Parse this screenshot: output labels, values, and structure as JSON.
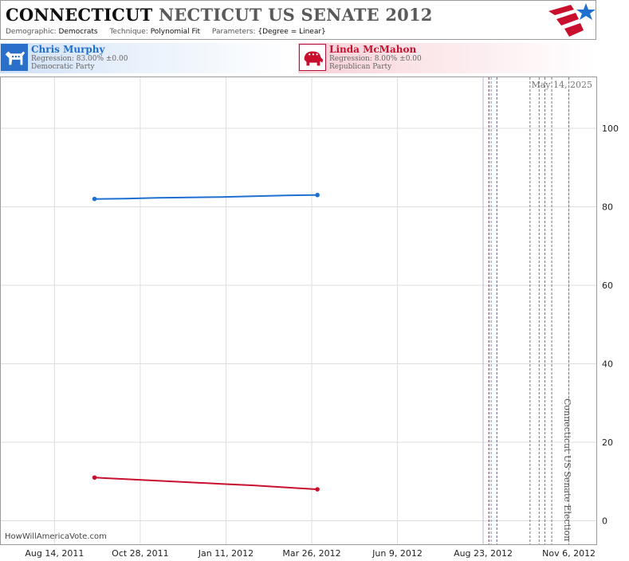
{
  "header": {
    "title_main": "CONNECTICUT",
    "title_rest": "NECTICUT US SENATE 2012",
    "demographic_label": "Demographic:",
    "demographic_value": "Democrats",
    "technique_label": "Technique:",
    "technique_value": "Polynomial Fit",
    "parameters_label": "Parameters:",
    "parameters_value": "{Degree = Linear}"
  },
  "candidates": [
    {
      "name": "Chris Murphy",
      "regression": "Regression: 83.00% ±0.00",
      "party": "Democratic Party",
      "color": "#1f6fd1"
    },
    {
      "name": "Linda McMahon",
      "regression": "Regression: 8.00% ±0.00",
      "party": "Republican Party",
      "color": "#c8102e"
    }
  ],
  "today_label": "May 14, 2025",
  "election_label": "Connecticut US Senate Election",
  "source_label": "HowWillAmericaVote.com",
  "colors": {
    "democrat": "#1f6fd1",
    "republican": "#c8102e",
    "grid": "#dddddd",
    "axis_text": "#222222"
  },
  "chart_data": {
    "type": "line",
    "x_ticks": [
      "Aug 14, 2011",
      "Oct 28, 2011",
      "Jan 11, 2012",
      "Mar 26, 2012",
      "Jun 9, 2012",
      "Aug 23, 2012",
      "Nov 6, 2012"
    ],
    "y_ticks": [
      0,
      20,
      40,
      60,
      80,
      100
    ],
    "ylim": [
      -6,
      113
    ],
    "xlim": [
      "2011-06-28",
      "2012-11-30"
    ],
    "grid": true,
    "series": [
      {
        "name": "Chris Murphy",
        "color": "#1f6fd1",
        "x": [
          "2011-09-18",
          "2011-10-15",
          "2011-11-12",
          "2011-12-10",
          "2012-01-07",
          "2012-02-04",
          "2012-03-03",
          "2012-03-31"
        ],
        "y": [
          82.0,
          82.1,
          82.3,
          82.4,
          82.5,
          82.7,
          82.9,
          83.0
        ]
      },
      {
        "name": "Linda McMahon",
        "color": "#c8102e",
        "x": [
          "2011-09-18",
          "2011-10-15",
          "2011-11-12",
          "2011-12-10",
          "2012-01-07",
          "2012-02-04",
          "2012-03-03",
          "2012-03-31"
        ],
        "y": [
          11.0,
          10.6,
          10.2,
          9.8,
          9.4,
          9.0,
          8.5,
          8.0
        ]
      }
    ],
    "event_lines": [
      {
        "date": "2012-08-23",
        "color": "#b6bcc8",
        "style": "solid"
      },
      {
        "date": "2012-08-28",
        "color": "#a02050",
        "style": "dashed"
      },
      {
        "date": "2012-08-30",
        "color": "#8090a8",
        "style": "dashed"
      },
      {
        "date": "2012-09-04",
        "color": "#4060c0",
        "style": "dashed"
      },
      {
        "date": "2012-10-03",
        "color": "#777777",
        "style": "dashed"
      },
      {
        "date": "2012-10-11",
        "color": "#777777",
        "style": "dashed"
      },
      {
        "date": "2012-10-16",
        "color": "#777777",
        "style": "dashed"
      },
      {
        "date": "2012-10-22",
        "color": "#777777",
        "style": "dashed"
      },
      {
        "date": "2012-11-06",
        "color": "#777777",
        "style": "dashed"
      }
    ]
  }
}
